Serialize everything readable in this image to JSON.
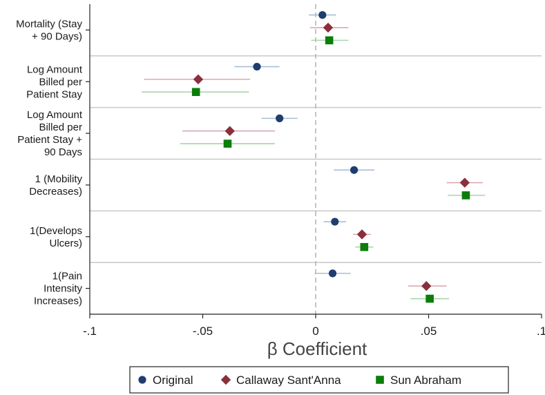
{
  "chart_data": {
    "type": "scatter",
    "subtype": "coefficient-plot-with-confidence-intervals",
    "xlabel": "β Coefficient",
    "ylabel": "",
    "xlim": [
      -0.1,
      0.1
    ],
    "xticks": [
      -0.1,
      -0.05,
      0,
      0.05,
      0.1
    ],
    "xtick_labels": [
      "-.1",
      "-.05",
      "0",
      ".05",
      ".1"
    ],
    "reference_line": 0,
    "grid": false,
    "legend_position": "bottom",
    "categories": [
      "Mortality (Stay\n+ 90 Days)",
      "Log Amount\nBilled per\nPatient Stay",
      "Log Amount\nBilled per\nPatient Stay +\n90 Days",
      "1 (Mobility\nDecreases)",
      "1(Develops\nUlcers)",
      "1(Pain\nIntensity\nIncreases)"
    ],
    "series": [
      {
        "name": "Original",
        "color": "#1f3d6e",
        "ci_color": "#a9bdd9",
        "marker": "circle",
        "values": [
          0.003,
          -0.026,
          -0.016,
          0.017,
          0.0085,
          0.0075
        ],
        "ci_low": [
          -0.003,
          -0.036,
          -0.024,
          0.008,
          0.0035,
          -0.0005
        ],
        "ci_high": [
          0.009,
          -0.016,
          -0.008,
          0.026,
          0.0135,
          0.0155
        ]
      },
      {
        "name": "Callaway Sant'Anna",
        "color": "#8b2f3c",
        "ci_color": "#d9aab2",
        "marker": "diamond",
        "values": [
          0.0055,
          -0.052,
          -0.038,
          0.066,
          0.0205,
          0.049
        ],
        "ci_low": [
          -0.0025,
          -0.076,
          -0.059,
          0.058,
          0.0165,
          0.041
        ],
        "ci_high": [
          0.0145,
          -0.029,
          -0.018,
          0.074,
          0.0245,
          0.058
        ]
      },
      {
        "name": "Sun Abraham",
        "color": "#0a7d0a",
        "ci_color": "#a6d6a6",
        "marker": "square",
        "values": [
          0.006,
          -0.053,
          -0.039,
          0.0665,
          0.0215,
          0.0505
        ],
        "ci_low": [
          -0.002,
          -0.077,
          -0.06,
          0.0585,
          0.0175,
          0.042
        ],
        "ci_high": [
          0.0145,
          -0.0295,
          -0.018,
          0.075,
          0.0255,
          0.059
        ]
      }
    ]
  }
}
